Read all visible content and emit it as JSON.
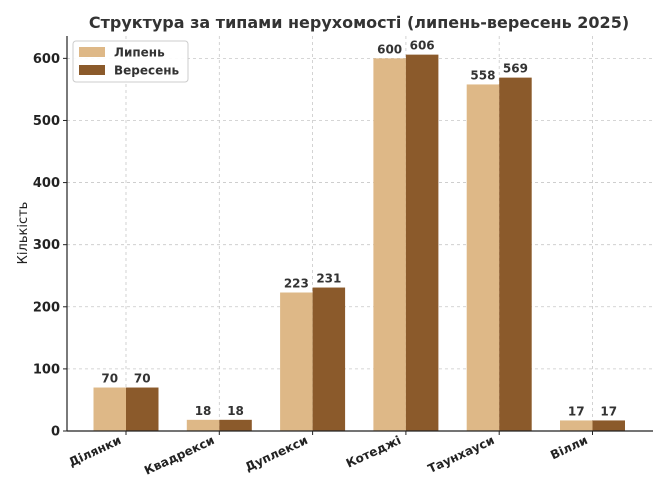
{
  "chart_data": {
    "type": "bar",
    "title": "Структура за типами нерухомості (липень-вересень 2025)",
    "xlabel": "",
    "ylabel": "Кількість",
    "categories": [
      "Ділянки",
      "Квадрекси",
      "Дуплекси",
      "Котеджі",
      "Таунхауси",
      "Вілли"
    ],
    "series": [
      {
        "name": "Липень",
        "values": [
          70,
          18,
          223,
          600,
          558,
          17
        ],
        "color": "#deb887"
      },
      {
        "name": "Вересень",
        "values": [
          70,
          18,
          231,
          606,
          569,
          17
        ],
        "color": "#8b5a2b"
      }
    ],
    "ylim": [
      0,
      636
    ],
    "yticks": [
      0,
      100,
      200,
      300,
      400,
      500,
      600
    ],
    "grid": true,
    "legend_position": "top-left",
    "data_labels": true
  }
}
